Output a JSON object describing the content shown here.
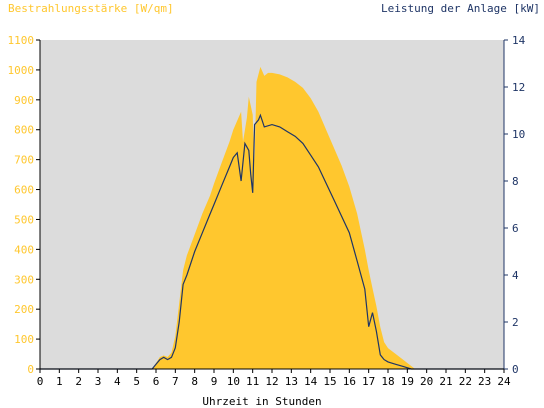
{
  "chart_data": {
    "type": "area",
    "title_left": "Bestrahlungsstärke [W/qm]",
    "title_right": "Leistung der Anlage [kW]",
    "xlabel": "Uhrzeit in Stunden",
    "x_ticks": [
      "0",
      "1",
      "2",
      "3",
      "4",
      "5",
      "6",
      "7",
      "8",
      "9",
      "10",
      "11",
      "12",
      "13",
      "14",
      "15",
      "16",
      "17",
      "18",
      "19",
      "20",
      "21",
      "22",
      "23",
      "24"
    ],
    "xlim": [
      0,
      24
    ],
    "ylim_left": [
      0,
      1100
    ],
    "ylim_right": [
      0,
      14
    ],
    "y_ticks_left": [
      "0",
      "100",
      "200",
      "300",
      "400",
      "500",
      "600",
      "700",
      "800",
      "900",
      "1000",
      "1100"
    ],
    "y_ticks_right": [
      "0",
      "2",
      "4",
      "6",
      "8",
      "10",
      "12",
      "14"
    ],
    "colors": {
      "plot_bg": "#dcdcdc",
      "irradiance_fill": "#ffc72e",
      "power_line": "#1f3566",
      "left_axis_text": "#ffc72e",
      "right_axis_text": "#1f3566",
      "axis_text": "#000000"
    },
    "series": [
      {
        "axis": "left",
        "style": "area",
        "points": [
          [
            0,
            0
          ],
          [
            5.8,
            0
          ],
          [
            6.0,
            20
          ],
          [
            6.2,
            40
          ],
          [
            6.4,
            45
          ],
          [
            6.6,
            40
          ],
          [
            6.8,
            55
          ],
          [
            7.0,
            110
          ],
          [
            7.2,
            220
          ],
          [
            7.4,
            330
          ],
          [
            7.6,
            380
          ],
          [
            8.0,
            450
          ],
          [
            8.4,
            520
          ],
          [
            8.8,
            580
          ],
          [
            9.0,
            620
          ],
          [
            9.4,
            690
          ],
          [
            9.8,
            760
          ],
          [
            10.0,
            800
          ],
          [
            10.2,
            830
          ],
          [
            10.4,
            860
          ],
          [
            10.5,
            760
          ],
          [
            10.7,
            840
          ],
          [
            10.8,
            910
          ],
          [
            11.0,
            850
          ],
          [
            11.05,
            760
          ],
          [
            11.1,
            700
          ],
          [
            11.2,
            960
          ],
          [
            11.4,
            1010
          ],
          [
            11.6,
            980
          ],
          [
            11.8,
            990
          ],
          [
            12.0,
            990
          ],
          [
            12.4,
            985
          ],
          [
            12.8,
            975
          ],
          [
            13.2,
            960
          ],
          [
            13.6,
            940
          ],
          [
            14.0,
            905
          ],
          [
            14.4,
            860
          ],
          [
            14.8,
            800
          ],
          [
            15.2,
            740
          ],
          [
            15.6,
            680
          ],
          [
            16.0,
            610
          ],
          [
            16.4,
            520
          ],
          [
            16.8,
            400
          ],
          [
            17.0,
            330
          ],
          [
            17.2,
            270
          ],
          [
            17.4,
            210
          ],
          [
            17.6,
            140
          ],
          [
            17.8,
            90
          ],
          [
            18.0,
            70
          ],
          [
            18.4,
            50
          ],
          [
            18.8,
            30
          ],
          [
            19.0,
            20
          ],
          [
            19.2,
            10
          ],
          [
            19.4,
            0
          ],
          [
            24,
            0
          ]
        ]
      },
      {
        "axis": "right",
        "style": "line",
        "points": [
          [
            0,
            0
          ],
          [
            5.8,
            0
          ],
          [
            6.0,
            0.2
          ],
          [
            6.2,
            0.4
          ],
          [
            6.4,
            0.5
          ],
          [
            6.6,
            0.4
          ],
          [
            6.8,
            0.5
          ],
          [
            7.0,
            0.9
          ],
          [
            7.2,
            2.0
          ],
          [
            7.4,
            3.6
          ],
          [
            7.6,
            4.0
          ],
          [
            8.0,
            5.0
          ],
          [
            8.4,
            5.8
          ],
          [
            8.8,
            6.6
          ],
          [
            9.0,
            7.0
          ],
          [
            9.4,
            7.8
          ],
          [
            9.8,
            8.6
          ],
          [
            10.0,
            9.0
          ],
          [
            10.2,
            9.2
          ],
          [
            10.4,
            8.0
          ],
          [
            10.6,
            9.6
          ],
          [
            10.8,
            9.3
          ],
          [
            10.9,
            8.3
          ],
          [
            11.0,
            7.5
          ],
          [
            11.1,
            10.4
          ],
          [
            11.3,
            10.6
          ],
          [
            11.4,
            10.8
          ],
          [
            11.6,
            10.3
          ],
          [
            12.0,
            10.4
          ],
          [
            12.4,
            10.3
          ],
          [
            12.8,
            10.1
          ],
          [
            13.2,
            9.9
          ],
          [
            13.6,
            9.6
          ],
          [
            14.0,
            9.1
          ],
          [
            14.4,
            8.6
          ],
          [
            14.8,
            7.9
          ],
          [
            15.2,
            7.2
          ],
          [
            15.6,
            6.5
          ],
          [
            16.0,
            5.8
          ],
          [
            16.4,
            4.6
          ],
          [
            16.8,
            3.4
          ],
          [
            17.0,
            1.8
          ],
          [
            17.2,
            2.4
          ],
          [
            17.4,
            1.6
          ],
          [
            17.6,
            0.6
          ],
          [
            17.8,
            0.4
          ],
          [
            18.0,
            0.3
          ],
          [
            18.4,
            0.2
          ],
          [
            18.8,
            0.1
          ],
          [
            19.2,
            0
          ],
          [
            24,
            0
          ]
        ]
      }
    ]
  }
}
